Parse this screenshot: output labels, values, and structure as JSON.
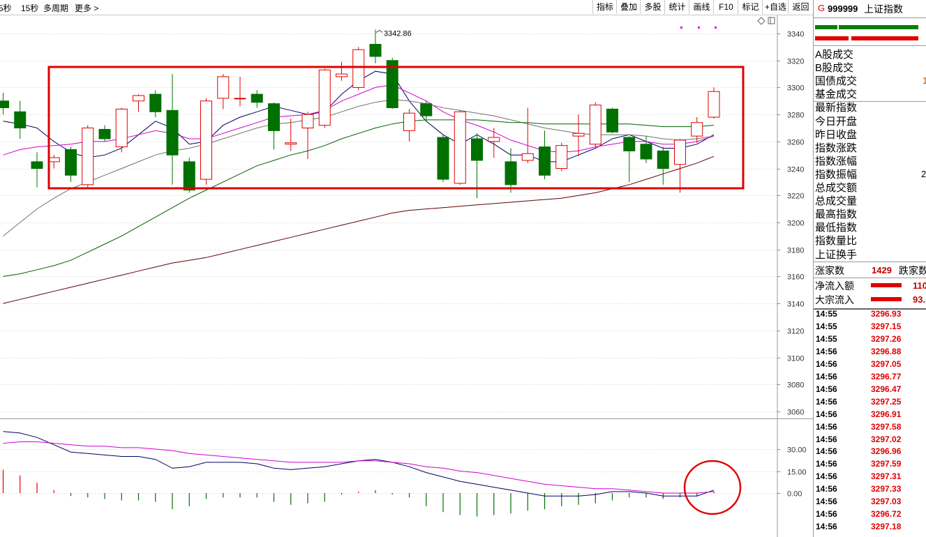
{
  "toolbar": {
    "periods": [
      "5秒",
      "15秒",
      "多周期",
      "更多 >"
    ],
    "buttons": [
      "指标",
      "叠加",
      "多股",
      "统计",
      "画线",
      "F10",
      "标记",
      "+自选",
      "返回"
    ]
  },
  "stock": {
    "flag": "G",
    "code": "999999",
    "name": "上证指数"
  },
  "info_labels": [
    "A股成交",
    "B股成交",
    "国债成交",
    "基金成交",
    "最新指数",
    "今日开盘",
    "昨日收盘",
    "指数涨跌",
    "指数涨幅",
    "指数振幅",
    "总成交额",
    "总成交量",
    "最高指数",
    "最低指数",
    "指数量比",
    "上证换手"
  ],
  "info_values": {
    "guozhai_partial": "1",
    "zhenfu_partial": "2"
  },
  "breadth": {
    "up_label": "涨家数",
    "up_count": "1429",
    "down_label": "跌家数"
  },
  "flows": [
    {
      "label": "净流入额",
      "value_partial": "110"
    },
    {
      "label": "大宗流入",
      "value_partial": "93."
    }
  ],
  "ticks": [
    {
      "time": "14:55",
      "price": "3296.93"
    },
    {
      "time": "14:55",
      "price": "3297.15"
    },
    {
      "time": "14:55",
      "price": "3297.26"
    },
    {
      "time": "14:56",
      "price": "3296.88"
    },
    {
      "time": "14:56",
      "price": "3297.05"
    },
    {
      "time": "14:56",
      "price": "3296.77"
    },
    {
      "time": "14:56",
      "price": "3296.47"
    },
    {
      "time": "14:56",
      "price": "3297.25"
    },
    {
      "time": "14:56",
      "price": "3296.91"
    },
    {
      "time": "14:56",
      "price": "3297.58"
    },
    {
      "time": "14:56",
      "price": "3297.02"
    },
    {
      "time": "14:56",
      "price": "3296.96"
    },
    {
      "time": "14:56",
      "price": "3297.59"
    },
    {
      "time": "14:56",
      "price": "3297.31"
    },
    {
      "time": "14:56",
      "price": "3297.33"
    },
    {
      "time": "14:56",
      "price": "3297.03"
    },
    {
      "time": "14:56",
      "price": "3296.72"
    },
    {
      "time": "14:56",
      "price": "3297.18"
    }
  ],
  "chart_data": [
    {
      "type": "candlestick",
      "ylim": [
        3050,
        3350
      ],
      "y_ticks": [
        3340,
        3320,
        3300,
        3280,
        3260,
        3240,
        3220,
        3200,
        3180,
        3160,
        3140,
        3120,
        3100,
        3080,
        3060
      ],
      "high_annotation": {
        "label": "3342.86",
        "value": 3342.86,
        "candle_index": 22
      },
      "candles": [
        {
          "o": 3290,
          "h": 3296,
          "l": 3280,
          "c": 3285
        },
        {
          "o": 3282,
          "h": 3290,
          "l": 3262,
          "c": 3270
        },
        {
          "o": 3245,
          "h": 3252,
          "l": 3226,
          "c": 3240
        },
        {
          "o": 3245,
          "h": 3250,
          "l": 3240,
          "c": 3248
        },
        {
          "o": 3254,
          "h": 3256,
          "l": 3230,
          "c": 3235
        },
        {
          "o": 3228,
          "h": 3272,
          "l": 3226,
          "c": 3270
        },
        {
          "o": 3269,
          "h": 3272,
          "l": 3260,
          "c": 3262
        },
        {
          "o": 3256,
          "h": 3285,
          "l": 3252,
          "c": 3284
        },
        {
          "o": 3290,
          "h": 3295,
          "l": 3282,
          "c": 3294
        },
        {
          "o": 3295,
          "h": 3298,
          "l": 3278,
          "c": 3282
        },
        {
          "o": 3283,
          "h": 3310,
          "l": 3228,
          "c": 3250
        },
        {
          "o": 3245,
          "h": 3248,
          "l": 3222,
          "c": 3224
        },
        {
          "o": 3232,
          "h": 3292,
          "l": 3228,
          "c": 3290
        },
        {
          "o": 3292,
          "h": 3310,
          "l": 3284,
          "c": 3308
        },
        {
          "o": 3292,
          "h": 3308,
          "l": 3286,
          "c": 3292
        },
        {
          "o": 3295,
          "h": 3298,
          "l": 3285,
          "c": 3289
        },
        {
          "o": 3288,
          "h": 3289,
          "l": 3254,
          "c": 3268
        },
        {
          "o": 3258,
          "h": 3277,
          "l": 3253,
          "c": 3259
        },
        {
          "o": 3270,
          "h": 3282,
          "l": 3247,
          "c": 3280
        },
        {
          "o": 3272,
          "h": 3314,
          "l": 3270,
          "c": 3313
        },
        {
          "o": 3308,
          "h": 3319,
          "l": 3305,
          "c": 3310
        },
        {
          "o": 3300,
          "h": 3330,
          "l": 3298,
          "c": 3328
        },
        {
          "o": 3332,
          "h": 3342.86,
          "l": 3318,
          "c": 3323
        },
        {
          "o": 3320,
          "h": 3322,
          "l": 3284,
          "c": 3285
        },
        {
          "o": 3268,
          "h": 3284,
          "l": 3260,
          "c": 3281
        },
        {
          "o": 3288,
          "h": 3290,
          "l": 3275,
          "c": 3279
        },
        {
          "o": 3263,
          "h": 3265,
          "l": 3230,
          "c": 3232
        },
        {
          "o": 3229,
          "h": 3283,
          "l": 3228,
          "c": 3282
        },
        {
          "o": 3262,
          "h": 3266,
          "l": 3218,
          "c": 3246
        },
        {
          "o": 3260,
          "h": 3270,
          "l": 3248,
          "c": 3263
        },
        {
          "o": 3245,
          "h": 3255,
          "l": 3222,
          "c": 3228
        },
        {
          "o": 3246,
          "h": 3285,
          "l": 3244,
          "c": 3251
        },
        {
          "o": 3256,
          "h": 3268,
          "l": 3232,
          "c": 3235
        },
        {
          "o": 3240,
          "h": 3259,
          "l": 3238,
          "c": 3257
        },
        {
          "o": 3264,
          "h": 3280,
          "l": 3249,
          "c": 3266
        },
        {
          "o": 3258,
          "h": 3289,
          "l": 3256,
          "c": 3287
        },
        {
          "o": 3284,
          "h": 3285,
          "l": 3266,
          "c": 3267
        },
        {
          "o": 3263,
          "h": 3264,
          "l": 3230,
          "c": 3253
        },
        {
          "o": 3258,
          "h": 3264,
          "l": 3244,
          "c": 3247
        },
        {
          "o": 3253,
          "h": 3256,
          "l": 3228,
          "c": 3240
        },
        {
          "o": 3243,
          "h": 3262,
          "l": 3222,
          "c": 3261
        },
        {
          "o": 3264,
          "h": 3278,
          "l": 3259,
          "c": 3274
        },
        {
          "o": 3278,
          "h": 3300,
          "l": 3277,
          "c": 3297
        }
      ],
      "moving_averages": [
        {
          "color": "#000060",
          "values": [
            3275,
            3273,
            3270,
            3260,
            3252,
            3248,
            3250,
            3255,
            3265,
            3275,
            3270,
            3258,
            3260,
            3272,
            3278,
            3282,
            3286,
            3283,
            3280,
            3282,
            3295,
            3305,
            3312,
            3310,
            3290,
            3275,
            3265,
            3258,
            3265,
            3258,
            3250,
            3250,
            3245,
            3245,
            3250,
            3255,
            3262,
            3265,
            3260,
            3255,
            3255,
            3258,
            3265
          ]
        },
        {
          "color": "#d000d0",
          "values": [
            3250,
            3254,
            3256,
            3257,
            3258,
            3260,
            3260,
            3262,
            3265,
            3268,
            3266,
            3262,
            3262,
            3266,
            3270,
            3274,
            3278,
            3279,
            3280,
            3283,
            3290,
            3295,
            3300,
            3302,
            3296,
            3290,
            3282,
            3276,
            3272,
            3267,
            3261,
            3257,
            3253,
            3252,
            3253,
            3256,
            3258,
            3260,
            3260,
            3258,
            3258,
            3260,
            3264
          ]
        },
        {
          "color": "#707070",
          "values": [
            3190,
            3200,
            3210,
            3218,
            3225,
            3230,
            3235,
            3240,
            3245,
            3250,
            3253,
            3255,
            3258,
            3262,
            3266,
            3270,
            3273,
            3274,
            3276,
            3278,
            3282,
            3286,
            3289,
            3291,
            3290,
            3288,
            3285,
            3283,
            3281,
            3279,
            3276,
            3273,
            3270,
            3268,
            3266,
            3265,
            3265,
            3265,
            3264,
            3262,
            3261,
            3262,
            3264
          ]
        },
        {
          "color": "#006000",
          "values": [
            3160,
            3162,
            3165,
            3168,
            3172,
            3178,
            3184,
            3190,
            3197,
            3204,
            3211,
            3218,
            3224,
            3230,
            3236,
            3242,
            3246,
            3250,
            3253,
            3257,
            3262,
            3266,
            3270,
            3273,
            3275,
            3276,
            3276,
            3276,
            3276,
            3275,
            3274,
            3274,
            3273,
            3273,
            3273,
            3273,
            3273,
            3273,
            3272,
            3271,
            3271,
            3271,
            3272
          ]
        },
        {
          "color": "#600000",
          "values": [
            3140,
            3143,
            3146,
            3149,
            3152,
            3155,
            3158,
            3161,
            3164,
            3167,
            3170,
            3172,
            3174,
            3177,
            3180,
            3183,
            3186,
            3189,
            3192,
            3195,
            3198,
            3201,
            3204,
            3207,
            3209,
            3210,
            3211,
            3212,
            3213,
            3214,
            3215,
            3216,
            3217,
            3218,
            3220,
            3222,
            3225,
            3228,
            3232,
            3236,
            3240,
            3244,
            3249
          ]
        }
      ]
    },
    {
      "type": "macd",
      "ylim": [
        -7,
        46
      ],
      "y_ticks": [
        30.0,
        15.0,
        0.0
      ],
      "y_tick_labels": [
        "30.00",
        "15.00",
        "0.00"
      ],
      "dif": [
        42,
        41,
        38,
        33,
        28,
        27,
        26,
        25,
        25,
        23,
        17,
        18,
        21,
        21,
        21,
        20,
        17,
        16,
        17,
        18,
        20,
        22,
        23,
        21,
        18,
        14,
        11,
        8,
        6,
        4,
        2,
        0,
        -2,
        -2,
        -2,
        -1,
        1,
        1,
        0,
        -2,
        -2,
        -2,
        2
      ],
      "dea": [
        34,
        35,
        35,
        34,
        33,
        32,
        32,
        31,
        31,
        30,
        29,
        27,
        26,
        25,
        24,
        23,
        22,
        21,
        21,
        21,
        21,
        22,
        22,
        21,
        20,
        18,
        17,
        15,
        14,
        12,
        10,
        8,
        6,
        5,
        4,
        3,
        3,
        2,
        1,
        0,
        0,
        0,
        1
      ],
      "bars": [
        16,
        12,
        7,
        2,
        -2,
        -3,
        -4,
        -5,
        -5,
        -6,
        -11,
        -9,
        -4,
        -3,
        -3,
        -3,
        -6,
        -8,
        -7,
        -6,
        -1,
        1,
        2,
        -1,
        -3,
        -9,
        -13,
        -15,
        -16,
        -15,
        -14,
        -12,
        -11,
        -9,
        -8,
        -7,
        -5,
        -3,
        -3,
        -4,
        -3,
        -2,
        1
      ]
    }
  ]
}
